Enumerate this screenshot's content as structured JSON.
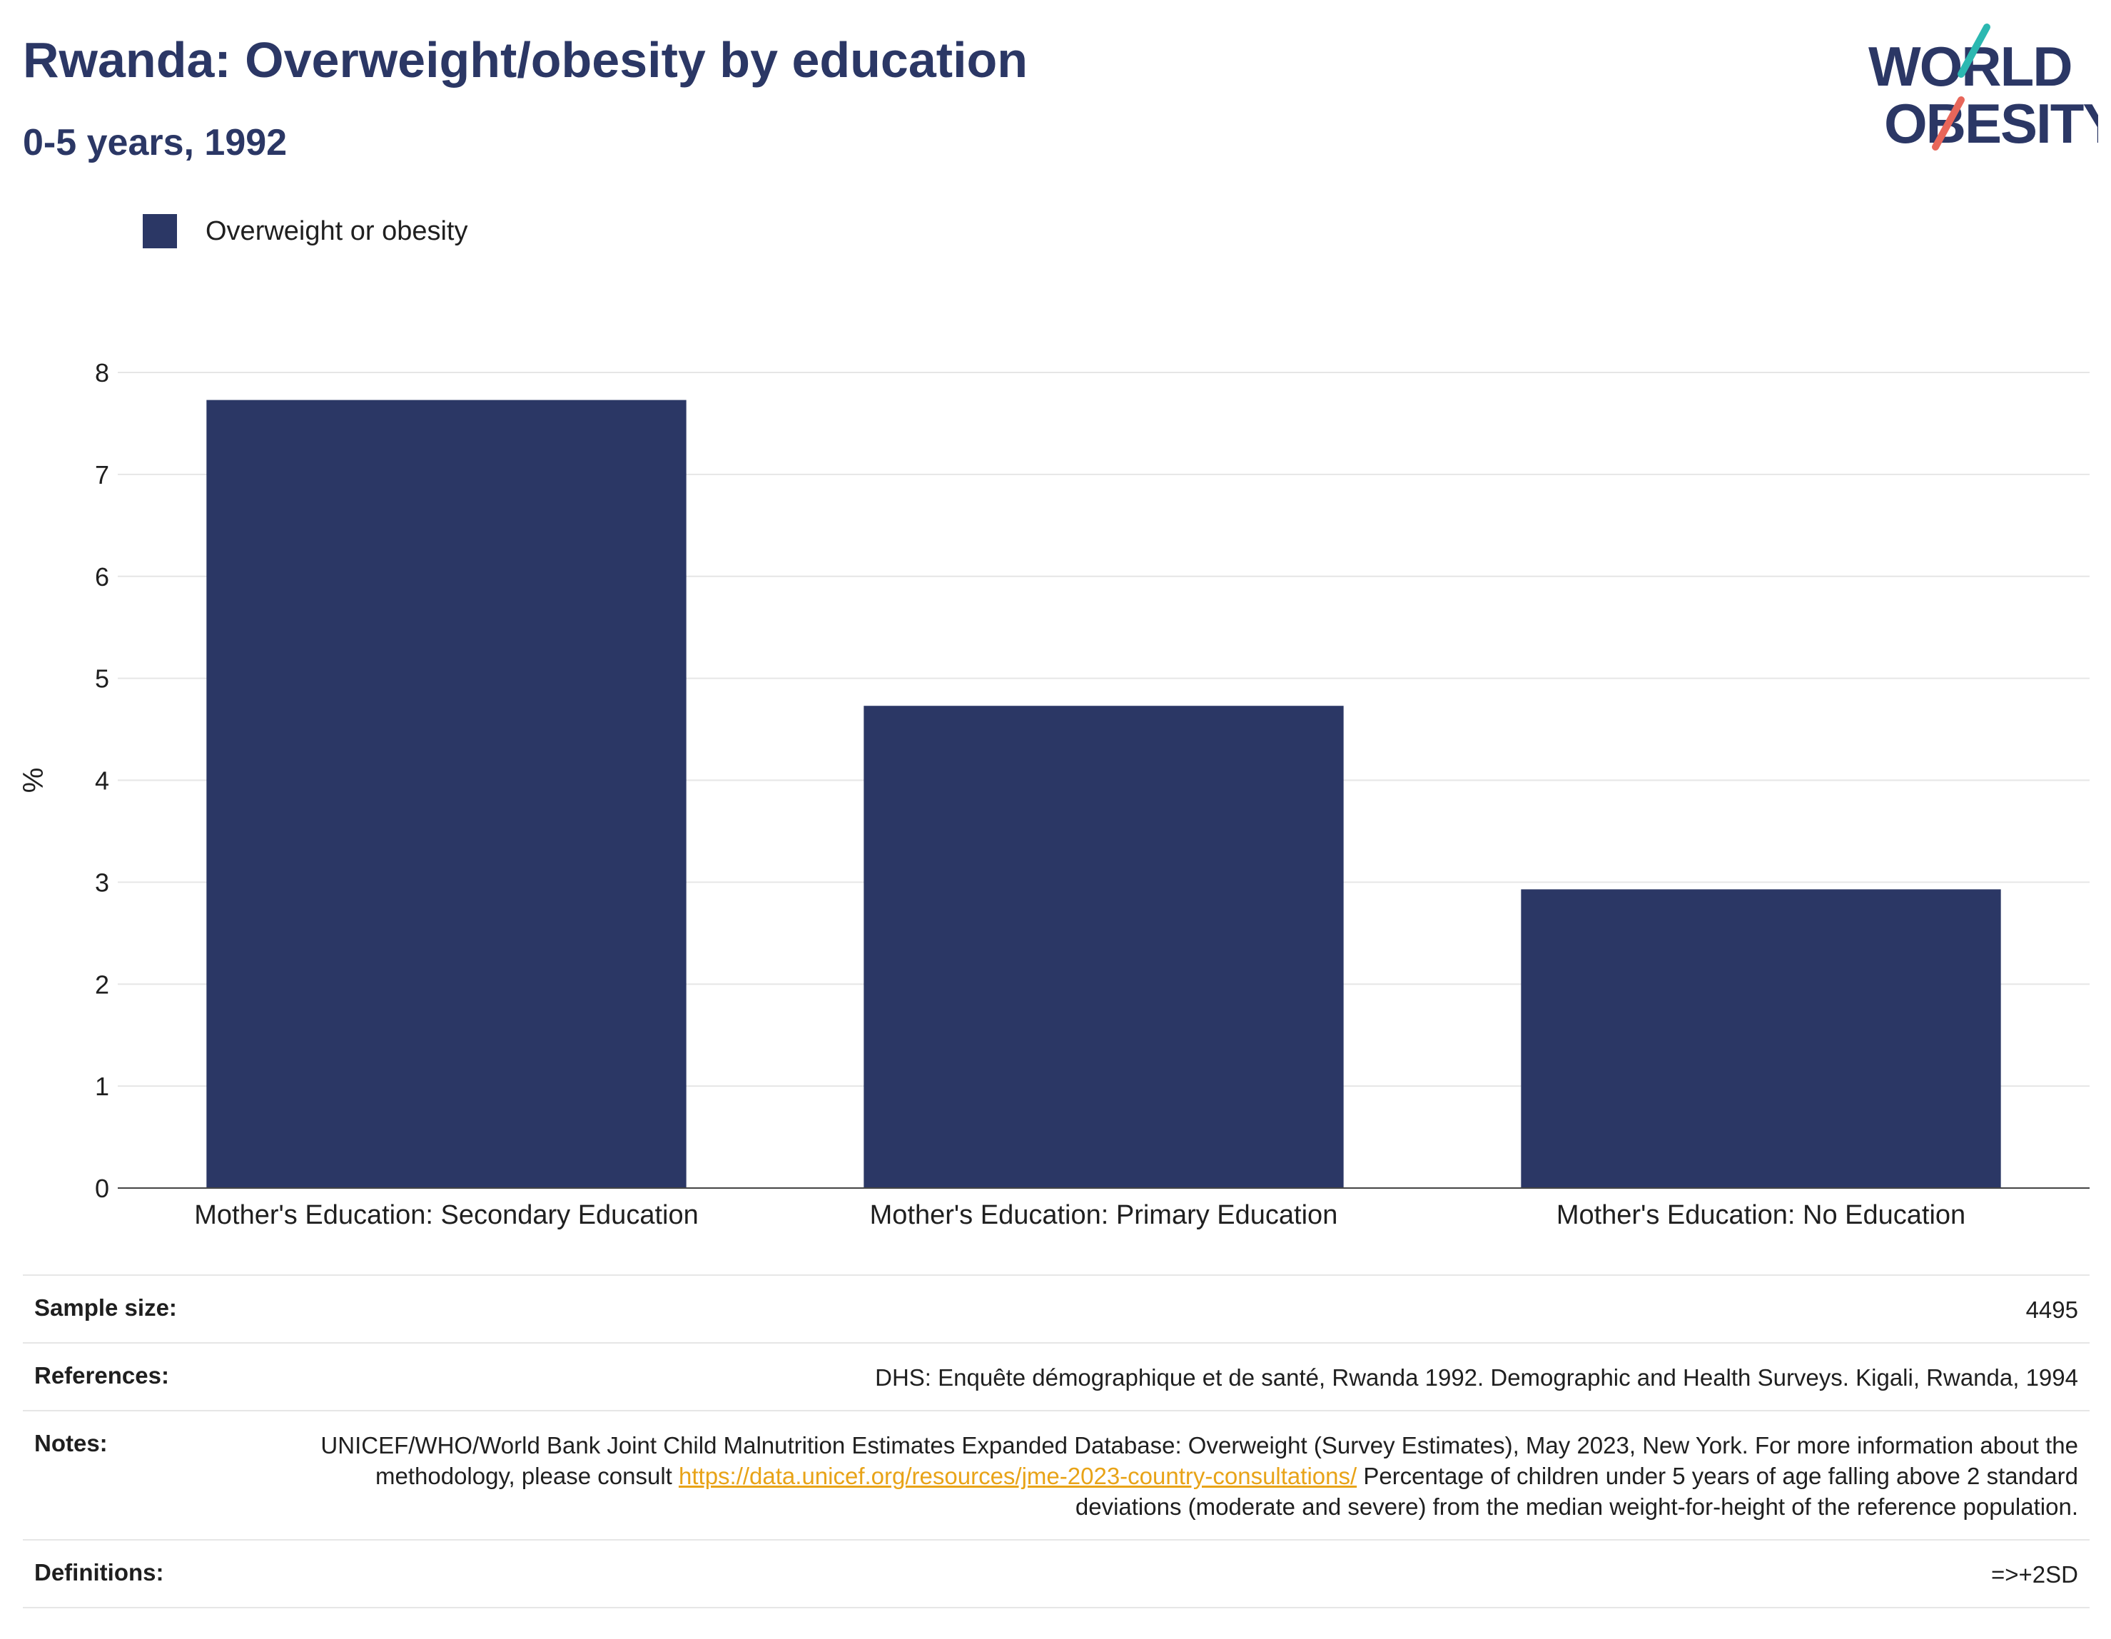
{
  "header": {
    "title": "Rwanda: Overweight/obesity by education",
    "subtitle": "0-5 years, 1992"
  },
  "logo": {
    "line1": "WORLD",
    "line2": "OBESITY",
    "text_color": "#2b3765",
    "accent_teal": "#2bb8b1",
    "accent_red": "#e8665a"
  },
  "legend": {
    "label": "Overweight or obesity",
    "color": "#2b3765"
  },
  "chart_data": {
    "type": "bar",
    "categories": [
      "Mother's Education: Secondary Education",
      "Mother's Education: Primary Education",
      "Mother's Education: No Education"
    ],
    "series": [
      {
        "name": "Overweight or obesity",
        "values": [
          7.73,
          4.73,
          2.93
        ],
        "color": "#2b3765"
      }
    ],
    "ylabel": "%",
    "xlabel": "",
    "ylim": [
      0,
      8
    ],
    "yticks": [
      "0",
      "1",
      "2",
      "3",
      "4",
      "5",
      "6",
      "7",
      "8"
    ],
    "grid": true
  },
  "info": {
    "sample_size_label": "Sample size:",
    "sample_size_value": "4495",
    "references_label": "References:",
    "references_value": "DHS: Enquête démographique et de santé, Rwanda 1992. Demographic and Health Surveys. Kigali, Rwanda, 1994",
    "notes_label": "Notes:",
    "notes_text_1": "UNICEF/WHO/World Bank Joint Child Malnutrition Estimates Expanded Database: Overweight (Survey Estimates), May 2023, New York. For more information about the methodology, please consult",
    "notes_link": "https://data.unicef.org/resources/jme-2023-country-consultations/",
    "notes_text_2": "Percentage of children under 5 years of age falling above 2 standard deviations (moderate and severe) from the median weight-for-height of the reference population.",
    "definitions_label": "Definitions:",
    "definitions_value": "=>+2SD"
  }
}
